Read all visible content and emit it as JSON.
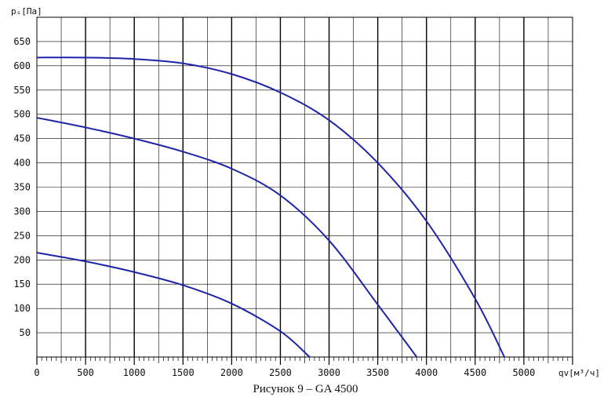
{
  "caption": "Рисунок 9 – GA 4500",
  "chart_data": {
    "type": "line",
    "title": "",
    "xlabel": "qv[м³/ч]",
    "ylabel": "pₛ[Па]",
    "xlim": [
      0,
      5500
    ],
    "ylim": [
      0,
      700
    ],
    "xticks": [
      0,
      500,
      1000,
      1500,
      2000,
      2500,
      3000,
      3500,
      4000,
      4500,
      5000
    ],
    "yticks": [
      50,
      100,
      150,
      200,
      250,
      300,
      350,
      400,
      450,
      500,
      550,
      600,
      650
    ],
    "grid": true,
    "line_color": "#1f24a8",
    "series": [
      {
        "x": [
          0,
          500,
          1000,
          1500,
          2000,
          2500,
          3000,
          3500,
          4000,
          4500,
          4800
        ],
        "y": [
          617,
          617,
          614,
          605,
          583,
          545,
          488,
          400,
          280,
          120,
          0
        ]
      },
      {
        "x": [
          0,
          500,
          1000,
          1500,
          2000,
          2500,
          3000,
          3500,
          3900
        ],
        "y": [
          493,
          473,
          450,
          423,
          388,
          333,
          240,
          108,
          0
        ]
      },
      {
        "x": [
          0,
          500,
          1000,
          1500,
          2000,
          2500,
          2800
        ],
        "y": [
          215,
          197,
          175,
          148,
          110,
          53,
          0
        ]
      }
    ]
  }
}
